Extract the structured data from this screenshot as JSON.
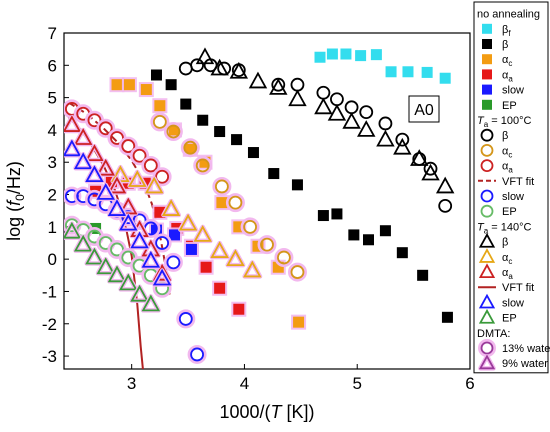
{
  "chart_data": {
    "type": "scatter",
    "xlabel": "1000/(T [K])",
    "ylabel": "log (f0/Hz)",
    "xlim": [
      2.4,
      6.0
    ],
    "ylim": [
      -3.4,
      7.0
    ],
    "x_ticks": [
      "3",
      "4",
      "5",
      "6"
    ],
    "y_ticks": [
      "-3",
      "-2",
      "-1",
      "0",
      "1",
      "2",
      "3",
      "4",
      "5",
      "6",
      "7"
    ],
    "annotation": "A0",
    "legend_position": "right, outside",
    "legend": [
      {
        "kind": "header",
        "text": "no annealing"
      },
      {
        "kind": "marker",
        "shape": "square",
        "color": "#33ddee",
        "text": "βf"
      },
      {
        "kind": "marker",
        "shape": "square",
        "color": "#000000",
        "text": "β"
      },
      {
        "kind": "marker",
        "shape": "square",
        "color": "#f39c12",
        "text": "αc"
      },
      {
        "kind": "marker",
        "shape": "square",
        "color": "#e61919",
        "text": "αa"
      },
      {
        "kind": "marker",
        "shape": "square",
        "color": "#1a1aff",
        "text": "slow"
      },
      {
        "kind": "marker",
        "shape": "square",
        "color": "#2a9a2a",
        "text": "EP"
      },
      {
        "kind": "header",
        "text": "Ta = 100°C"
      },
      {
        "kind": "marker",
        "shape": "circle",
        "color": "#000000",
        "text": "β"
      },
      {
        "kind": "marker",
        "shape": "circle",
        "color": "#d4961a",
        "text": "αc"
      },
      {
        "kind": "marker",
        "shape": "circle",
        "color": "#cc2222",
        "text": "αa"
      },
      {
        "kind": "line",
        "style": "dashed",
        "color": "#b22222",
        "text": "VFT fit"
      },
      {
        "kind": "marker",
        "shape": "circle",
        "color": "#1a1aff",
        "text": "slow"
      },
      {
        "kind": "marker",
        "shape": "circle",
        "color": "#66bb66",
        "text": "EP"
      },
      {
        "kind": "header",
        "text": "Ta = 140°C"
      },
      {
        "kind": "marker",
        "shape": "triangle",
        "color": "#000000",
        "text": "β"
      },
      {
        "kind": "marker",
        "shape": "triangle",
        "color": "#e6a817",
        "text": "αc"
      },
      {
        "kind": "marker",
        "shape": "triangle",
        "color": "#cc2222",
        "text": "αa"
      },
      {
        "kind": "line",
        "style": "solid",
        "color": "#b22222",
        "text": "VFT fit"
      },
      {
        "kind": "marker",
        "shape": "triangle",
        "color": "#1a1aff",
        "text": "slow"
      },
      {
        "kind": "marker",
        "shape": "triangle",
        "color": "#3a9a3a",
        "text": "EP"
      },
      {
        "kind": "header",
        "text": "DMTA:"
      },
      {
        "kind": "marker",
        "shape": "circle",
        "color": "#9a3a9a",
        "halo": true,
        "text": "13% water"
      },
      {
        "kind": "marker",
        "shape": "triangle",
        "color": "#9a3a9a",
        "halo": true,
        "text": "9% water"
      }
    ],
    "series": [
      {
        "shape": "square",
        "color": "#33ddee",
        "halo": false,
        "points": [
          [
            4.67,
            6.25
          ],
          [
            4.78,
            6.35
          ],
          [
            4.9,
            6.35
          ],
          [
            5.03,
            6.3
          ],
          [
            5.17,
            6.33
          ],
          [
            5.3,
            5.8
          ],
          [
            5.45,
            5.8
          ],
          [
            5.62,
            5.78
          ],
          [
            5.78,
            5.6
          ]
        ]
      },
      {
        "shape": "square",
        "color": "#000000",
        "halo": false,
        "points": [
          [
            3.22,
            5.7
          ],
          [
            3.35,
            5.4
          ],
          [
            3.48,
            4.8
          ],
          [
            3.63,
            4.3
          ],
          [
            3.78,
            3.95
          ],
          [
            3.93,
            3.7
          ],
          [
            4.08,
            3.3
          ],
          [
            4.26,
            2.65
          ],
          [
            4.47,
            2.3
          ],
          [
            4.7,
            1.35
          ],
          [
            4.82,
            1.4
          ],
          [
            4.97,
            0.75
          ],
          [
            5.1,
            0.6
          ],
          [
            5.25,
            0.88
          ],
          [
            5.4,
            0.2
          ],
          [
            5.58,
            -0.5
          ],
          [
            5.8,
            -1.8
          ]
        ]
      },
      {
        "shape": "square",
        "color": "#f39c12",
        "halo": true,
        "points": [
          [
            2.87,
            5.4
          ],
          [
            2.98,
            5.4
          ],
          [
            3.13,
            5.25
          ],
          [
            3.25,
            4.75
          ],
          [
            3.38,
            4.0
          ],
          [
            3.52,
            3.4
          ],
          [
            3.65,
            3.0
          ],
          [
            3.8,
            1.75
          ],
          [
            3.95,
            1.0
          ],
          [
            4.12,
            0.4
          ],
          [
            4.3,
            -0.25
          ],
          [
            4.48,
            -1.95
          ]
        ]
      },
      {
        "shape": "square",
        "color": "#e61919",
        "halo": true,
        "points": [
          [
            2.68,
            2.1
          ],
          [
            2.82,
            2.4
          ],
          [
            2.97,
            2.35
          ],
          [
            3.12,
            2.35
          ],
          [
            3.25,
            1.45
          ],
          [
            3.4,
            0.95
          ],
          [
            3.53,
            0.4
          ],
          [
            3.66,
            -0.25
          ],
          [
            3.78,
            -0.9
          ],
          [
            3.95,
            -1.55
          ]
        ]
      },
      {
        "shape": "square",
        "color": "#1a1aff",
        "halo": true,
        "points": [
          [
            3.22,
            0.9
          ],
          [
            3.38,
            0.75
          ],
          [
            3.53,
            0.3
          ]
        ]
      },
      {
        "shape": "square",
        "color": "#2a9a2a",
        "halo": false,
        "points": [
          [
            2.68,
            0.95
          ]
        ]
      },
      {
        "shape": "circle",
        "color": "#000000",
        "halo": false,
        "points": [
          [
            3.48,
            5.9
          ],
          [
            3.58,
            6.0
          ],
          [
            3.7,
            6.0
          ],
          [
            3.82,
            5.9
          ],
          [
            3.95,
            5.85
          ],
          [
            4.3,
            5.4
          ],
          [
            4.47,
            5.4
          ],
          [
            4.7,
            5.15
          ],
          [
            4.82,
            4.95
          ],
          [
            4.95,
            4.7
          ],
          [
            5.08,
            4.55
          ],
          [
            5.25,
            4.2
          ],
          [
            5.4,
            3.7
          ],
          [
            5.55,
            3.1
          ],
          [
            5.65,
            2.8
          ],
          [
            5.78,
            1.65
          ]
        ]
      },
      {
        "shape": "circle",
        "color": "#d4961a",
        "halo": true,
        "points": [
          [
            3.25,
            4.25
          ],
          [
            3.37,
            3.95
          ],
          [
            3.52,
            3.45
          ],
          [
            3.63,
            2.9
          ],
          [
            3.8,
            2.25
          ],
          [
            3.92,
            1.75
          ],
          [
            4.05,
            1.0
          ],
          [
            4.2,
            0.45
          ],
          [
            4.35,
            0.05
          ],
          [
            4.47,
            -0.4
          ]
        ]
      },
      {
        "shape": "circle",
        "color": "#cc2222",
        "halo": true,
        "points": [
          [
            2.47,
            4.65
          ],
          [
            2.57,
            4.5
          ],
          [
            2.67,
            4.3
          ],
          [
            2.77,
            4.05
          ],
          [
            2.87,
            3.75
          ],
          [
            2.97,
            3.5
          ],
          [
            3.07,
            3.2
          ],
          [
            3.17,
            2.9
          ],
          [
            3.27,
            2.55
          ]
        ]
      },
      {
        "shape": "circle",
        "color": "#1a1aff",
        "halo": true,
        "points": [
          [
            2.47,
            1.95
          ],
          [
            2.57,
            1.95
          ],
          [
            2.67,
            1.85
          ],
          [
            2.77,
            1.7
          ],
          [
            2.87,
            1.5
          ],
          [
            2.97,
            1.3
          ],
          [
            3.07,
            1.2
          ],
          [
            3.17,
            0.95
          ],
          [
            3.27,
            0.5
          ],
          [
            3.37,
            -0.1
          ],
          [
            3.48,
            -1.85
          ],
          [
            3.58,
            -2.95
          ]
        ]
      },
      {
        "shape": "circle",
        "color": "#66bb66",
        "halo": true,
        "points": [
          [
            2.47,
            1.05
          ],
          [
            2.57,
            0.9
          ],
          [
            2.67,
            0.7
          ],
          [
            2.77,
            0.5
          ],
          [
            2.87,
            0.3
          ],
          [
            2.97,
            0.05
          ],
          [
            3.07,
            -0.2
          ],
          [
            3.17,
            -0.5
          ],
          [
            3.27,
            -0.9
          ]
        ]
      },
      {
        "shape": "triangle",
        "color": "#000000",
        "halo": false,
        "points": [
          [
            3.65,
            6.25
          ],
          [
            3.78,
            5.9
          ],
          [
            3.95,
            5.8
          ],
          [
            4.12,
            5.5
          ],
          [
            4.3,
            5.3
          ],
          [
            4.47,
            4.95
          ],
          [
            4.7,
            4.7
          ],
          [
            4.82,
            4.5
          ],
          [
            4.95,
            4.25
          ],
          [
            5.08,
            4.0
          ],
          [
            5.25,
            3.7
          ],
          [
            5.4,
            3.45
          ],
          [
            5.55,
            3.1
          ],
          [
            5.65,
            2.65
          ],
          [
            5.78,
            2.25
          ]
        ]
      },
      {
        "shape": "triangle",
        "color": "#e6a817",
        "halo": true,
        "points": [
          [
            2.9,
            2.6
          ],
          [
            3.05,
            2.45
          ],
          [
            3.2,
            2.25
          ],
          [
            3.35,
            1.55
          ],
          [
            3.5,
            1.1
          ],
          [
            3.63,
            0.75
          ],
          [
            3.78,
            0.25
          ],
          [
            3.92,
            0.0
          ],
          [
            4.07,
            -0.35
          ]
        ]
      },
      {
        "shape": "triangle",
        "color": "#cc2222",
        "halo": true,
        "points": [
          [
            2.47,
            4.15
          ],
          [
            2.57,
            3.75
          ],
          [
            2.67,
            3.25
          ],
          [
            2.77,
            2.8
          ],
          [
            2.87,
            2.25
          ],
          [
            2.97,
            1.6
          ],
          [
            3.07,
            0.9
          ],
          [
            3.17,
            0.3
          ],
          [
            3.27,
            -0.45
          ]
        ]
      },
      {
        "shape": "triangle",
        "color": "#1a1aff",
        "halo": true,
        "points": [
          [
            2.47,
            3.4
          ],
          [
            2.57,
            3.0
          ],
          [
            2.67,
            2.6
          ],
          [
            2.77,
            2.05
          ],
          [
            2.87,
            1.55
          ],
          [
            2.97,
            1.1
          ],
          [
            3.07,
            0.55
          ],
          [
            3.17,
            -0.05
          ],
          [
            3.27,
            -0.6
          ]
        ]
      },
      {
        "shape": "triangle",
        "color": "#3a9a3a",
        "halo": true,
        "points": [
          [
            2.47,
            0.85
          ],
          [
            2.57,
            0.45
          ],
          [
            2.67,
            0.05
          ],
          [
            2.77,
            -0.25
          ],
          [
            2.87,
            -0.5
          ],
          [
            2.97,
            -0.75
          ],
          [
            3.07,
            -1.1
          ],
          [
            3.17,
            -1.4
          ]
        ]
      }
    ],
    "fits": [
      {
        "style": "dashed",
        "color": "#b22222",
        "points": [
          [
            2.44,
            4.85
          ],
          [
            2.6,
            4.5
          ],
          [
            2.75,
            4.05
          ],
          [
            2.88,
            3.6
          ],
          [
            3.0,
            3.05
          ],
          [
            3.1,
            2.45
          ],
          [
            3.18,
            1.7
          ],
          [
            3.25,
            0.75
          ],
          [
            3.3,
            -0.2
          ],
          [
            3.34,
            -1.2
          ]
        ]
      },
      {
        "style": "solid",
        "color": "#b22222",
        "points": [
          [
            2.44,
            4.4
          ],
          [
            2.55,
            4.0
          ],
          [
            2.65,
            3.5
          ],
          [
            2.75,
            2.9
          ],
          [
            2.85,
            2.15
          ],
          [
            2.93,
            1.3
          ],
          [
            3.0,
            0.1
          ],
          [
            3.05,
            -1.4
          ],
          [
            3.08,
            -2.7
          ],
          [
            3.1,
            -3.4
          ]
        ]
      }
    ]
  }
}
